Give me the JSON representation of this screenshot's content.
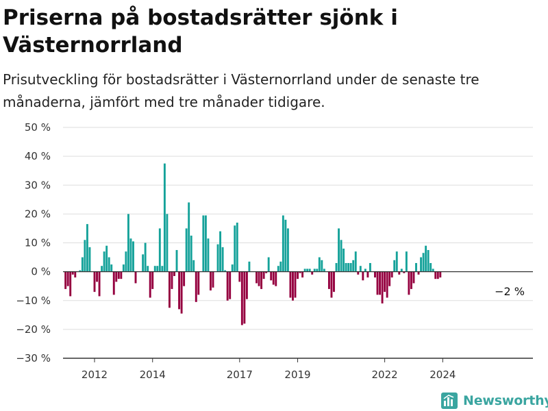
{
  "title": "Priserna på bostadsrätter sjönk i Västernorrland",
  "subtitle": "Prisutveckling för bostadsrätter i Västernorrland under de senaste tre månaderna, jämfört med tre månader tidigare.",
  "brand": "Newsworthy",
  "colors": {
    "positive": "#15a29a",
    "negative": "#95003f",
    "grid": "#dddddd",
    "axis": "#333333",
    "brand": "#3aa5a0"
  },
  "chart_data": {
    "type": "bar",
    "title": "Priserna på bostadsrätter sjönk i Västernorrland",
    "subtitle": "Prisutveckling för bostadsrätter i Västernorrland under de senaste tre månaderna, jämfört med tre månader tidigare.",
    "xlabel": "",
    "ylabel": "",
    "ylim": [
      -30,
      50
    ],
    "y_ticks": [
      -30,
      -20,
      -10,
      0,
      10,
      20,
      30,
      40,
      50
    ],
    "y_tick_labels": [
      "−30 %",
      "−20 %",
      "−10 %",
      "0 %",
      "10 %",
      "20 %",
      "30 %",
      "40 %",
      "50 %"
    ],
    "x_ticks": [
      "2012",
      "2014",
      "2017",
      "2019",
      "2022",
      "2024"
    ],
    "grid": true,
    "annotation": "−2 %",
    "values": [
      -6,
      -5,
      -8.5,
      -1,
      -2,
      0,
      0.5,
      5,
      11,
      16.5,
      8.5,
      0,
      -7,
      -3.5,
      -8.5,
      2,
      7,
      9,
      5,
      2.5,
      -8,
      -3.5,
      -2.5,
      -2.5,
      2.5,
      7,
      20,
      11.5,
      10.5,
      -4,
      0,
      0,
      6,
      10,
      2,
      -9,
      -6,
      2,
      2,
      15,
      2,
      37.5,
      20,
      -12.5,
      -6,
      -1.5,
      7.5,
      -13,
      -14.5,
      -5,
      15,
      24,
      12.5,
      4,
      -10.5,
      -8,
      0,
      19.5,
      19.5,
      11.5,
      -6.5,
      -5.5,
      0,
      9.5,
      14,
      8.5,
      0.5,
      -10,
      -9.5,
      2.5,
      16,
      17,
      -3.5,
      -18.5,
      -18,
      -9.5,
      3.5,
      0,
      0,
      -4,
      -5,
      -6,
      -2.5,
      -0.5,
      5,
      -3,
      -4.5,
      -5,
      2,
      3.5,
      19.5,
      18,
      15,
      -9,
      -10,
      -9,
      -2.5,
      -0.5,
      -2,
      1,
      1,
      1,
      -1,
      1,
      1,
      5,
      4,
      1,
      0,
      -6,
      -9,
      -7,
      3,
      15,
      11,
      8,
      3,
      3,
      3,
      4,
      7,
      -1,
      2,
      -3,
      1,
      -2,
      3,
      0,
      -2,
      -8,
      -8,
      -11,
      -7,
      -9,
      -5,
      -2,
      4,
      7,
      -1,
      1,
      -0.5,
      7,
      -8,
      -6,
      -4,
      3,
      -1,
      5,
      6.5,
      9,
      7.5,
      3,
      1,
      -2.5,
      -2.5,
      -2
    ]
  }
}
